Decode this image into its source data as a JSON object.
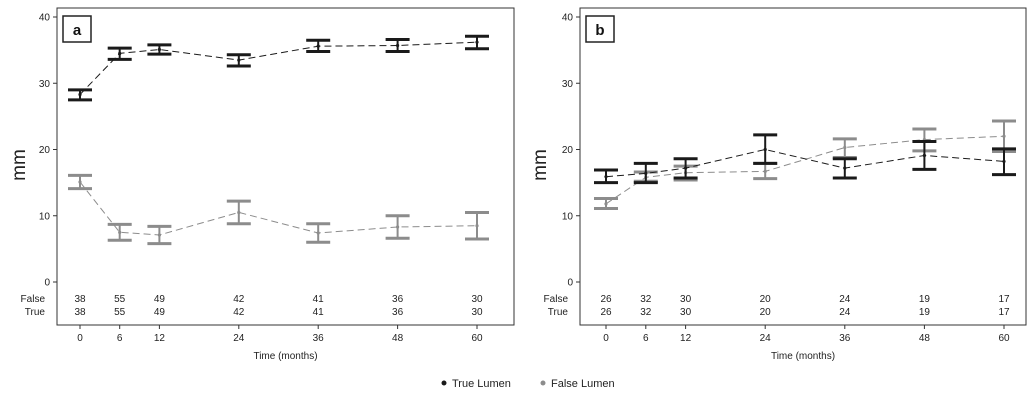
{
  "chart_data": [
    {
      "type": "line",
      "panel": "a",
      "ylabel": "mm",
      "xlabel": "Time (months)",
      "x": [
        0,
        6,
        12,
        24,
        36,
        48,
        60
      ],
      "ylim": [
        0,
        40
      ],
      "yticks": [
        0,
        10,
        20,
        30,
        40
      ],
      "grid": false,
      "series": [
        {
          "name": "True Lumen",
          "color": "#1a1a1a",
          "dash": "7,4",
          "mean": [
            28.3,
            34.5,
            35.1,
            33.5,
            35.6,
            35.7,
            36.2
          ],
          "lower": [
            27.5,
            33.6,
            34.4,
            32.6,
            34.8,
            34.8,
            35.2
          ],
          "upper": [
            29.0,
            35.3,
            35.8,
            34.3,
            36.5,
            36.6,
            37.1
          ]
        },
        {
          "name": "False Lumen",
          "color": "#8c8c8c",
          "dash": "7,4",
          "mean": [
            15.1,
            7.5,
            7.1,
            10.5,
            7.4,
            8.3,
            8.5
          ],
          "lower": [
            14.1,
            6.3,
            5.8,
            8.8,
            6.0,
            6.6,
            6.5
          ],
          "upper": [
            16.1,
            8.7,
            8.4,
            12.2,
            8.8,
            10.0,
            10.5
          ]
        }
      ],
      "counts": {
        "labels": [
          "False",
          "True"
        ],
        "False": [
          "38",
          "55",
          "49",
          "42",
          "41",
          "36",
          "30"
        ],
        "True": [
          "38",
          "55",
          "49",
          "42",
          "41",
          "36",
          "30"
        ]
      }
    },
    {
      "type": "line",
      "panel": "b",
      "ylabel": "mm",
      "xlabel": "Time (months)",
      "x": [
        0,
        6,
        12,
        24,
        36,
        48,
        60
      ],
      "ylim": [
        0,
        40
      ],
      "yticks": [
        0,
        10,
        20,
        30,
        40
      ],
      "grid": false,
      "series": [
        {
          "name": "True Lumen",
          "color": "#1a1a1a",
          "dash": "7,4",
          "mean": [
            15.9,
            16.4,
            17.2,
            20.0,
            17.2,
            19.1,
            18.2
          ],
          "lower": [
            15.0,
            15.0,
            15.7,
            17.9,
            15.7,
            17.0,
            16.2
          ],
          "upper": [
            16.9,
            17.9,
            18.6,
            22.2,
            18.6,
            21.2,
            20.1
          ]
        },
        {
          "name": "False Lumen",
          "color": "#8c8c8c",
          "dash": "7,4",
          "mean": [
            11.8,
            15.8,
            16.5,
            16.7,
            20.3,
            21.5,
            22.0
          ],
          "lower": [
            11.1,
            15.2,
            15.4,
            15.6,
            18.8,
            19.8,
            19.7
          ],
          "upper": [
            12.6,
            16.6,
            17.5,
            17.9,
            21.6,
            23.1,
            24.3
          ]
        }
      ],
      "counts": {
        "labels": [
          "False",
          "True"
        ],
        "False": [
          "26",
          "32",
          "30",
          "20",
          "24",
          "19",
          "17"
        ],
        "True": [
          "26",
          "32",
          "30",
          "20",
          "24",
          "19",
          "17"
        ]
      }
    }
  ],
  "legend": {
    "placement": "bottom-center",
    "items": [
      {
        "label": "True Lumen",
        "color": "#1a1a1a"
      },
      {
        "label": "False Lumen",
        "color": "#8c8c8c"
      }
    ]
  }
}
